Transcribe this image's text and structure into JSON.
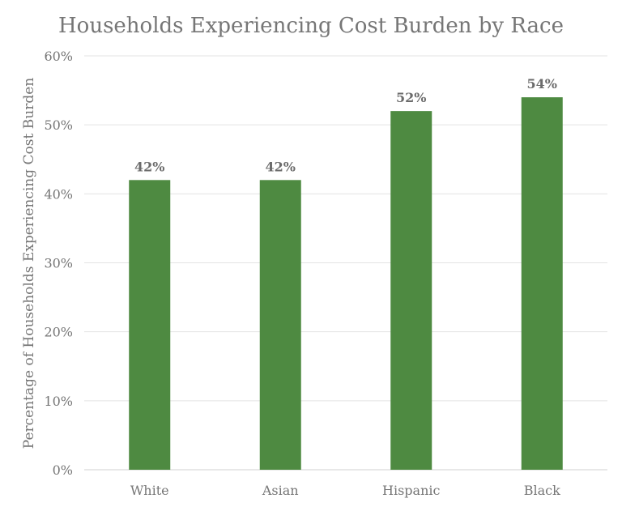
{
  "chart_data": {
    "type": "bar",
    "title": "Households Experiencing Cost Burden by Race",
    "ylabel": "Percentage of Households Experiencing Cost Burden",
    "xlabel": "",
    "categories": [
      "White",
      "Asian",
      "Hispanic",
      "Black"
    ],
    "values": [
      42,
      42,
      52,
      54
    ],
    "value_labels": [
      "42%",
      "42%",
      "52%",
      "54%"
    ],
    "ylim": [
      0,
      60
    ],
    "y_ticks": [
      0,
      10,
      20,
      30,
      40,
      50,
      60
    ],
    "y_tick_labels": [
      "0%",
      "10%",
      "20%",
      "30%",
      "40%",
      "50%",
      "60%"
    ],
    "bar_color": "#4e8a41",
    "grid": true,
    "legend": "none"
  }
}
